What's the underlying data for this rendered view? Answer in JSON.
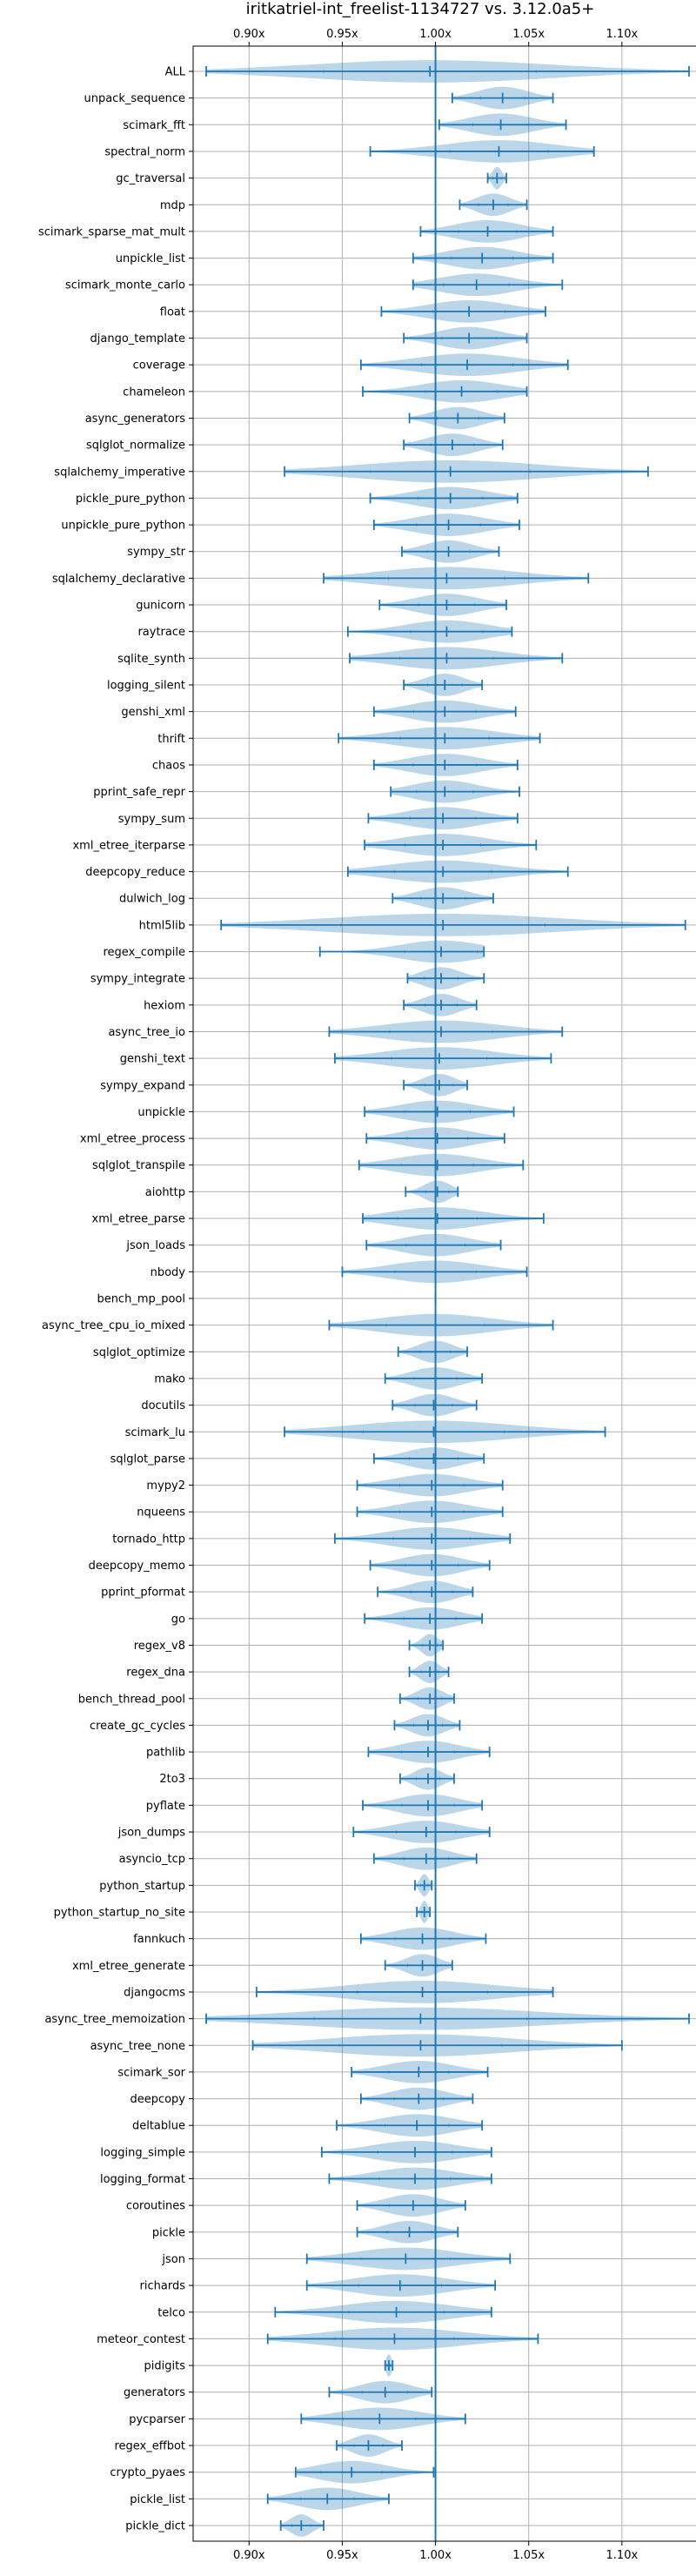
{
  "chart_data": {
    "type": "violin",
    "title": "iritkatriel-int_freelist-1134727 vs. 3.12.0a5+",
    "xlim": [
      0.87,
      1.15
    ],
    "xticks": [
      0.9,
      0.95,
      1.0,
      1.05,
      1.1
    ],
    "xtick_labels": [
      "0.90x",
      "0.95x",
      "1.00x",
      "1.05x",
      "1.10x"
    ],
    "reference_line": 1.0,
    "series": [
      {
        "name": "ALL",
        "min": 0.877,
        "median": 0.997,
        "max": 1.136
      },
      {
        "name": "unpack_sequence",
        "min": 1.009,
        "median": 1.036,
        "max": 1.063
      },
      {
        "name": "scimark_fft",
        "min": 1.002,
        "median": 1.035,
        "max": 1.07
      },
      {
        "name": "spectral_norm",
        "min": 0.965,
        "median": 1.034,
        "max": 1.085
      },
      {
        "name": "gc_traversal",
        "min": 1.028,
        "median": 1.033,
        "max": 1.038
      },
      {
        "name": "mdp",
        "min": 1.013,
        "median": 1.031,
        "max": 1.049
      },
      {
        "name": "scimark_sparse_mat_mult",
        "min": 0.992,
        "median": 1.028,
        "max": 1.063
      },
      {
        "name": "unpickle_list",
        "min": 0.988,
        "median": 1.025,
        "max": 1.063
      },
      {
        "name": "scimark_monte_carlo",
        "min": 0.988,
        "median": 1.022,
        "max": 1.068
      },
      {
        "name": "float",
        "min": 0.971,
        "median": 1.018,
        "max": 1.059
      },
      {
        "name": "django_template",
        "min": 0.983,
        "median": 1.018,
        "max": 1.049
      },
      {
        "name": "coverage",
        "min": 0.96,
        "median": 1.017,
        "max": 1.071
      },
      {
        "name": "chameleon",
        "min": 0.961,
        "median": 1.014,
        "max": 1.049
      },
      {
        "name": "async_generators",
        "min": 0.986,
        "median": 1.012,
        "max": 1.037
      },
      {
        "name": "sqlglot_normalize",
        "min": 0.983,
        "median": 1.009,
        "max": 1.036
      },
      {
        "name": "sqlalchemy_imperative",
        "min": 0.919,
        "median": 1.008,
        "max": 1.114
      },
      {
        "name": "pickle_pure_python",
        "min": 0.965,
        "median": 1.008,
        "max": 1.044
      },
      {
        "name": "unpickle_pure_python",
        "min": 0.967,
        "median": 1.007,
        "max": 1.045
      },
      {
        "name": "sympy_str",
        "min": 0.982,
        "median": 1.007,
        "max": 1.034
      },
      {
        "name": "sqlalchemy_declarative",
        "min": 0.94,
        "median": 1.006,
        "max": 1.082
      },
      {
        "name": "gunicorn",
        "min": 0.97,
        "median": 1.006,
        "max": 1.038
      },
      {
        "name": "raytrace",
        "min": 0.953,
        "median": 1.006,
        "max": 1.041
      },
      {
        "name": "sqlite_synth",
        "min": 0.954,
        "median": 1.006,
        "max": 1.068
      },
      {
        "name": "logging_silent",
        "min": 0.983,
        "median": 1.005,
        "max": 1.025
      },
      {
        "name": "genshi_xml",
        "min": 0.967,
        "median": 1.005,
        "max": 1.043
      },
      {
        "name": "thrift",
        "min": 0.948,
        "median": 1.005,
        "max": 1.056
      },
      {
        "name": "chaos",
        "min": 0.967,
        "median": 1.005,
        "max": 1.044
      },
      {
        "name": "pprint_safe_repr",
        "min": 0.976,
        "median": 1.005,
        "max": 1.045
      },
      {
        "name": "sympy_sum",
        "min": 0.964,
        "median": 1.004,
        "max": 1.044
      },
      {
        "name": "xml_etree_iterparse",
        "min": 0.962,
        "median": 1.004,
        "max": 1.054
      },
      {
        "name": "deepcopy_reduce",
        "min": 0.953,
        "median": 1.004,
        "max": 1.071
      },
      {
        "name": "dulwich_log",
        "min": 0.977,
        "median": 1.004,
        "max": 1.031
      },
      {
        "name": "html5lib",
        "min": 0.885,
        "median": 1.004,
        "max": 1.134
      },
      {
        "name": "regex_compile",
        "min": 0.938,
        "median": 1.003,
        "max": 1.026
      },
      {
        "name": "sympy_integrate",
        "min": 0.985,
        "median": 1.003,
        "max": 1.026
      },
      {
        "name": "hexiom",
        "min": 0.983,
        "median": 1.003,
        "max": 1.022
      },
      {
        "name": "async_tree_io",
        "min": 0.943,
        "median": 1.003,
        "max": 1.068
      },
      {
        "name": "genshi_text",
        "min": 0.946,
        "median": 1.002,
        "max": 1.062
      },
      {
        "name": "sympy_expand",
        "min": 0.983,
        "median": 1.002,
        "max": 1.017
      },
      {
        "name": "unpickle",
        "min": 0.962,
        "median": 1.001,
        "max": 1.042
      },
      {
        "name": "xml_etree_process",
        "min": 0.963,
        "median": 1.001,
        "max": 1.037
      },
      {
        "name": "sqlglot_transpile",
        "min": 0.959,
        "median": 1.001,
        "max": 1.047
      },
      {
        "name": "aiohttp",
        "min": 0.984,
        "median": 1.001,
        "max": 1.012
      },
      {
        "name": "xml_etree_parse",
        "min": 0.961,
        "median": 1.001,
        "max": 1.058
      },
      {
        "name": "json_loads",
        "min": 0.963,
        "median": 1.0,
        "max": 1.035
      },
      {
        "name": "nbody",
        "min": 0.95,
        "median": 1.0,
        "max": 1.049
      },
      {
        "name": "bench_mp_pool",
        "min": 1.0,
        "median": 1.0,
        "max": 1.0
      },
      {
        "name": "async_tree_cpu_io_mixed",
        "min": 0.943,
        "median": 1.0,
        "max": 1.063
      },
      {
        "name": "sqlglot_optimize",
        "min": 0.98,
        "median": 1.0,
        "max": 1.017
      },
      {
        "name": "mako",
        "min": 0.973,
        "median": 1.0,
        "max": 1.025
      },
      {
        "name": "docutils",
        "min": 0.977,
        "median": 0.999,
        "max": 1.022
      },
      {
        "name": "scimark_lu",
        "min": 0.919,
        "median": 0.999,
        "max": 1.091
      },
      {
        "name": "sqlglot_parse",
        "min": 0.967,
        "median": 0.999,
        "max": 1.026
      },
      {
        "name": "mypy2",
        "min": 0.958,
        "median": 0.998,
        "max": 1.036
      },
      {
        "name": "nqueens",
        "min": 0.958,
        "median": 0.998,
        "max": 1.036
      },
      {
        "name": "tornado_http",
        "min": 0.946,
        "median": 0.998,
        "max": 1.04
      },
      {
        "name": "deepcopy_memo",
        "min": 0.965,
        "median": 0.998,
        "max": 1.029
      },
      {
        "name": "pprint_pformat",
        "min": 0.969,
        "median": 0.998,
        "max": 1.02
      },
      {
        "name": "go",
        "min": 0.962,
        "median": 0.997,
        "max": 1.025
      },
      {
        "name": "regex_v8",
        "min": 0.986,
        "median": 0.997,
        "max": 1.004
      },
      {
        "name": "regex_dna",
        "min": 0.986,
        "median": 0.997,
        "max": 1.007
      },
      {
        "name": "bench_thread_pool",
        "min": 0.981,
        "median": 0.997,
        "max": 1.01
      },
      {
        "name": "create_gc_cycles",
        "min": 0.978,
        "median": 0.996,
        "max": 1.013
      },
      {
        "name": "pathlib",
        "min": 0.964,
        "median": 0.996,
        "max": 1.029
      },
      {
        "name": "2to3",
        "min": 0.981,
        "median": 0.996,
        "max": 1.01
      },
      {
        "name": "pyflate",
        "min": 0.961,
        "median": 0.996,
        "max": 1.025
      },
      {
        "name": "json_dumps",
        "min": 0.956,
        "median": 0.995,
        "max": 1.029
      },
      {
        "name": "asyncio_tcp",
        "min": 0.967,
        "median": 0.995,
        "max": 1.022
      },
      {
        "name": "python_startup",
        "min": 0.989,
        "median": 0.994,
        "max": 0.998
      },
      {
        "name": "python_startup_no_site",
        "min": 0.99,
        "median": 0.994,
        "max": 0.997
      },
      {
        "name": "fannkuch",
        "min": 0.96,
        "median": 0.993,
        "max": 1.027
      },
      {
        "name": "xml_etree_generate",
        "min": 0.973,
        "median": 0.993,
        "max": 1.009
      },
      {
        "name": "djangocms",
        "min": 0.904,
        "median": 0.993,
        "max": 1.063
      },
      {
        "name": "async_tree_memoization",
        "min": 0.877,
        "median": 0.992,
        "max": 1.136
      },
      {
        "name": "async_tree_none",
        "min": 0.902,
        "median": 0.992,
        "max": 1.1
      },
      {
        "name": "scimark_sor",
        "min": 0.955,
        "median": 0.991,
        "max": 1.028
      },
      {
        "name": "deepcopy",
        "min": 0.96,
        "median": 0.991,
        "max": 1.02
      },
      {
        "name": "deltablue",
        "min": 0.947,
        "median": 0.99,
        "max": 1.025
      },
      {
        "name": "logging_simple",
        "min": 0.939,
        "median": 0.989,
        "max": 1.03
      },
      {
        "name": "logging_format",
        "min": 0.943,
        "median": 0.989,
        "max": 1.03
      },
      {
        "name": "coroutines",
        "min": 0.958,
        "median": 0.988,
        "max": 1.016
      },
      {
        "name": "pickle",
        "min": 0.958,
        "median": 0.986,
        "max": 1.012
      },
      {
        "name": "json",
        "min": 0.931,
        "median": 0.984,
        "max": 1.04
      },
      {
        "name": "richards",
        "min": 0.931,
        "median": 0.981,
        "max": 1.032
      },
      {
        "name": "telco",
        "min": 0.914,
        "median": 0.979,
        "max": 1.03
      },
      {
        "name": "meteor_contest",
        "min": 0.91,
        "median": 0.978,
        "max": 1.055
      },
      {
        "name": "pidigits",
        "min": 0.973,
        "median": 0.975,
        "max": 0.977
      },
      {
        "name": "generators",
        "min": 0.943,
        "median": 0.973,
        "max": 0.998
      },
      {
        "name": "pycparser",
        "min": 0.928,
        "median": 0.97,
        "max": 1.016
      },
      {
        "name": "regex_effbot",
        "min": 0.947,
        "median": 0.964,
        "max": 0.982
      },
      {
        "name": "crypto_pyaes",
        "min": 0.925,
        "median": 0.955,
        "max": 0.999
      },
      {
        "name": "pickle_list",
        "min": 0.91,
        "median": 0.942,
        "max": 0.975
      },
      {
        "name": "pickle_dict",
        "min": 0.917,
        "median": 0.928,
        "max": 0.94
      }
    ]
  }
}
